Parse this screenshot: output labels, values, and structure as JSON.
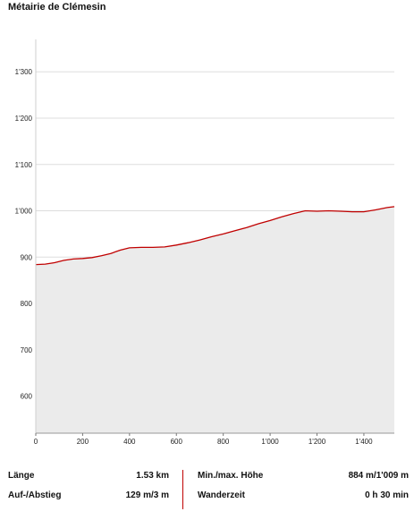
{
  "title": "Métairie de Clémesin",
  "chart_data": {
    "type": "area",
    "title": "Métairie de Clémesin",
    "xlim": [
      0,
      1530
    ],
    "ylim": [
      520,
      1370
    ],
    "x_ticks": [
      0,
      200,
      400,
      600,
      800,
      1000,
      1200,
      1400
    ],
    "x_tick_labels": [
      "0",
      "200",
      "400",
      "600",
      "800",
      "1'000",
      "1'200",
      "1'400"
    ],
    "y_ticks": [
      600,
      700,
      800,
      900,
      1000,
      1100,
      1200,
      1300
    ],
    "y_tick_labels": [
      "600",
      "700",
      "800",
      "900",
      "1'000",
      "1'100",
      "1'200",
      "1'300"
    ],
    "grid": true,
    "line_color": "#c00000",
    "fill_color": "#ebebeb",
    "x": [
      0,
      40,
      80,
      120,
      160,
      200,
      240,
      280,
      320,
      360,
      400,
      450,
      500,
      550,
      600,
      650,
      700,
      750,
      800,
      850,
      900,
      950,
      1000,
      1050,
      1100,
      1150,
      1200,
      1250,
      1300,
      1350,
      1400,
      1450,
      1500,
      1530
    ],
    "y": [
      884,
      885,
      888,
      893,
      896,
      897,
      899,
      903,
      908,
      915,
      920,
      921,
      921,
      922,
      926,
      931,
      937,
      944,
      950,
      957,
      964,
      972,
      979,
      987,
      994,
      1000,
      999,
      1000,
      999,
      998,
      998,
      1002,
      1007,
      1009
    ]
  },
  "stats": {
    "length_label": "Länge",
    "length_value": "1.53 km",
    "ascent_label": "Auf-/Abstieg",
    "ascent_value": "129 m/3 m",
    "height_label": "Min./max. Höhe",
    "height_value": "884 m/1'009 m",
    "time_label": "Wanderzeit",
    "time_value": "0 h 30 min"
  }
}
